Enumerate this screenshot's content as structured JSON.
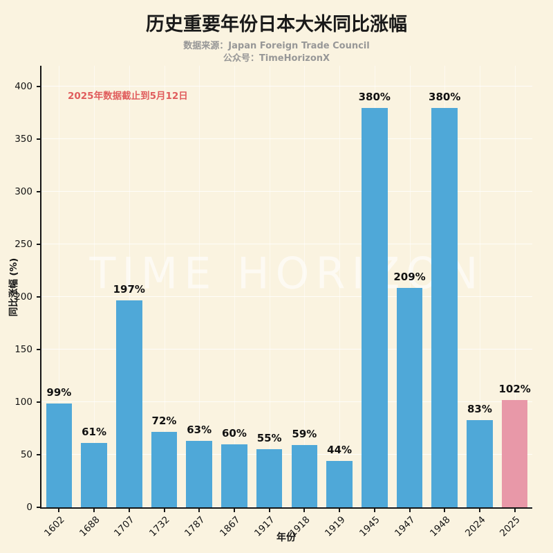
{
  "header": {
    "title": "历史重要年份日本大米同比涨幅",
    "subtitle_line1": "数据来源：Japan Foreign Trade Council",
    "subtitle_line2": "公众号：TimeHorizonX"
  },
  "chart_data": {
    "type": "bar",
    "title": "历史重要年份日本大米同比涨幅",
    "categories": [
      "1602",
      "1688",
      "1707",
      "1732",
      "1787",
      "1867",
      "1917",
      "1918",
      "1919",
      "1945",
      "1947",
      "1948",
      "2024",
      "2025"
    ],
    "values": [
      99,
      61,
      197,
      72,
      63,
      60,
      55,
      59,
      44,
      380,
      209,
      380,
      83,
      102
    ],
    "value_labels": [
      "99%",
      "61%",
      "197%",
      "72%",
      "63%",
      "60%",
      "55%",
      "59%",
      "44%",
      "380%",
      "209%",
      "380%",
      "83%",
      "102%"
    ],
    "xlabel": "年份",
    "ylabel": "同比涨幅 (%)",
    "ylim": [
      0,
      420
    ],
    "yticks": [
      0,
      50,
      100,
      150,
      200,
      250,
      300,
      350,
      400
    ],
    "grid": true,
    "legend": "none",
    "bar_color": "#4FA8D8",
    "highlight_color": "#E898A8",
    "highlight_index": 13,
    "annotation": "2025年数据截止到5月12日",
    "annotation_color": "#E05C5C",
    "watermark": "TIME HORIZON",
    "background_color": "#FAF3E0"
  }
}
